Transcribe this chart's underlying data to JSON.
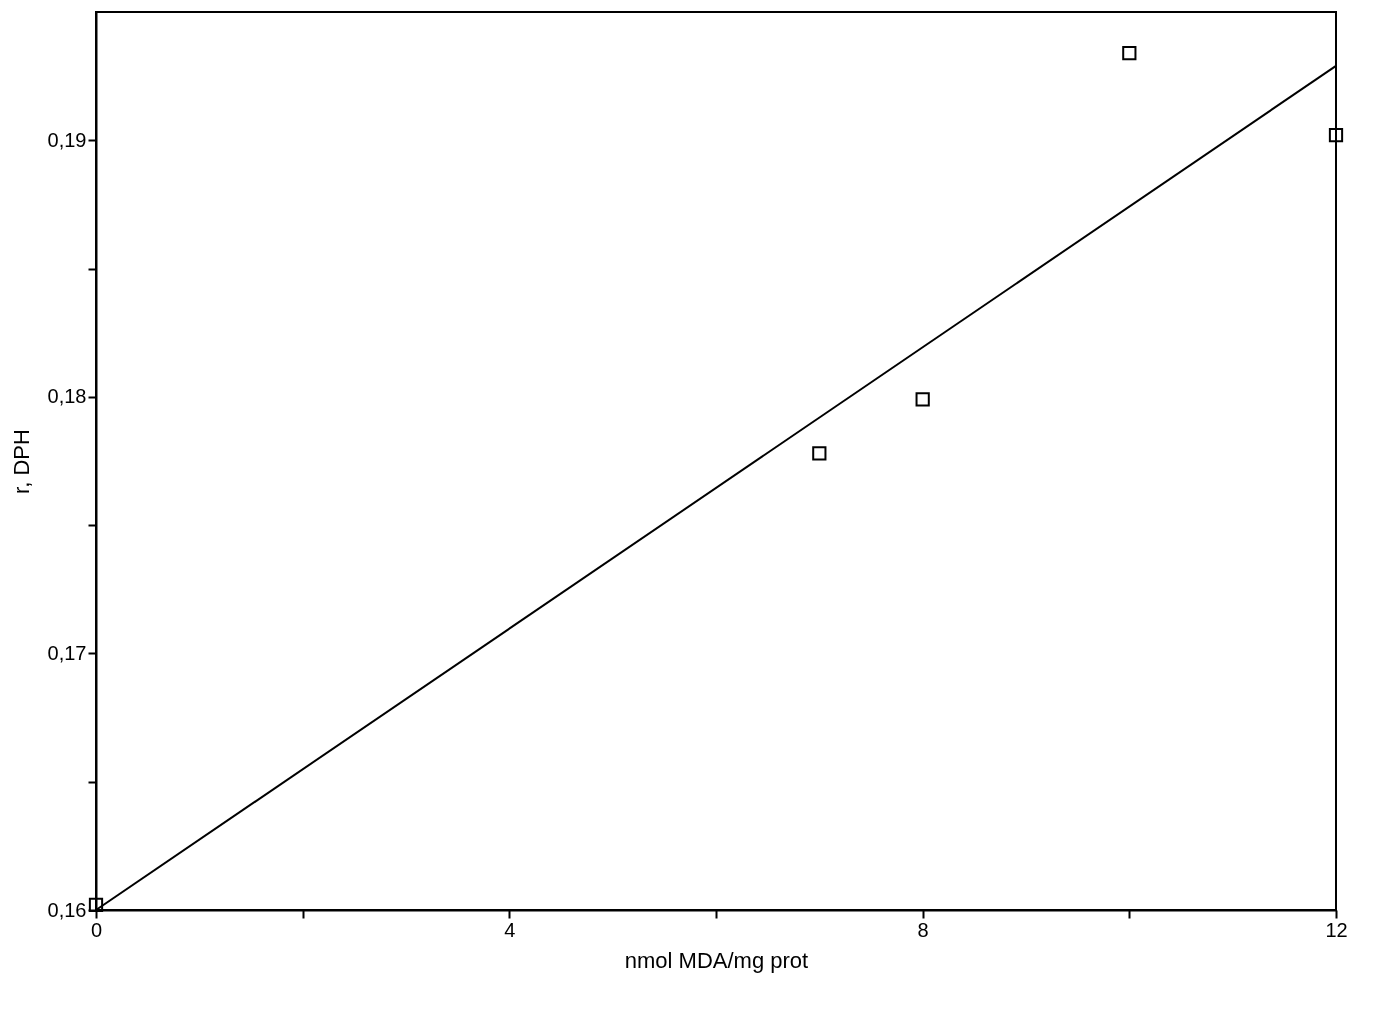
{
  "chart_data": {
    "type": "scatter",
    "xlabel": "nmol MDA/mg prot",
    "ylabel": "r, DPH",
    "xlim": [
      0,
      12
    ],
    "ylim": [
      0.16,
      0.195
    ],
    "xticks": [
      0,
      {
        "value": 2,
        "label": null
      },
      4,
      {
        "value": 6,
        "label": null
      },
      8,
      {
        "value": 10,
        "label": null
      },
      12
    ],
    "yticks": [
      {
        "value": 0.16,
        "label": "0,16"
      },
      {
        "value": 0.165,
        "label": null
      },
      {
        "value": 0.17,
        "label": "0,17"
      },
      {
        "value": 0.175,
        "label": null
      },
      {
        "value": 0.18,
        "label": "0,18"
      },
      {
        "value": 0.185,
        "label": null
      },
      {
        "value": 0.19,
        "label": "0,19"
      }
    ],
    "grid": false,
    "marker": "square",
    "series": [
      {
        "color": "#000000",
        "x": [
          0,
          7,
          8,
          10,
          12
        ],
        "values": [
          0.1602,
          0.1778,
          0.1799,
          0.1934,
          0.1902
        ]
      },
      {
        "type": "line",
        "color": "#000000",
        "line_style": "solid",
        "marker": "none",
        "x": [
          0,
          12
        ],
        "values": [
          0.16,
          0.1929
        ]
      }
    ]
  }
}
